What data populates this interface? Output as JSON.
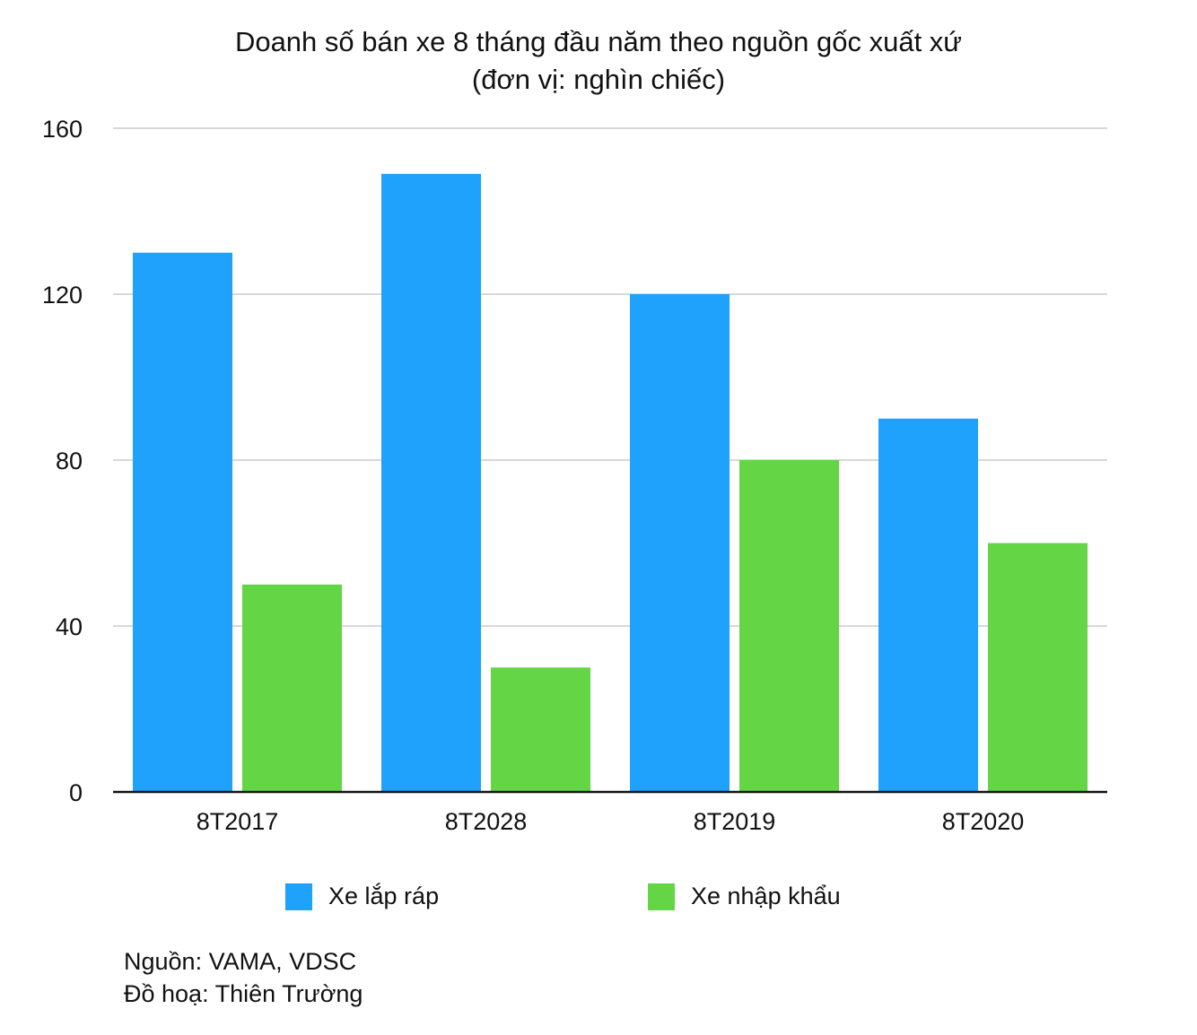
{
  "chart_data": {
    "type": "bar",
    "title": "Doanh số bán xe 8 tháng đầu năm theo nguồn gốc xuất xứ",
    "subtitle": "(đơn vị: nghìn chiếc)",
    "categories": [
      "8T2017",
      "8T2028",
      "8T2019",
      "8T2020"
    ],
    "series": [
      {
        "name": "Xe lắp ráp",
        "color": "#1fa2fb",
        "values": [
          130,
          149,
          120,
          90
        ]
      },
      {
        "name": "Xe nhập khẩu",
        "color": "#64d545",
        "values": [
          50,
          30,
          80,
          60
        ]
      }
    ],
    "ylim": [
      0,
      160
    ],
    "yticks": [
      0,
      40,
      80,
      120,
      160
    ],
    "ytick_labels": [
      "0",
      "40",
      "80",
      "120",
      "160"
    ],
    "grid": true,
    "legend_position": "bottom"
  },
  "notes": {
    "source": "Nguồn: VAMA, VDSC",
    "graphics": "Đồ hoạ: Thiên Trường"
  }
}
